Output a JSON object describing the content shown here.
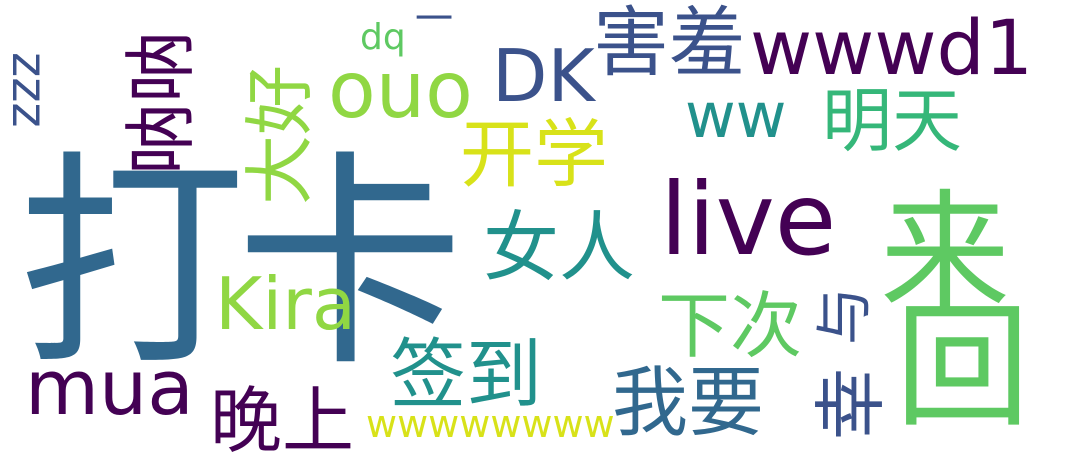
{
  "colors": {
    "dark_purple": "#440154",
    "indigo": "#3b528b",
    "blue": "#31688e",
    "teal": "#21918c",
    "green": "#35b779",
    "light_green": "#5ec962",
    "lime": "#90d743",
    "yellow": "#d8e219"
  },
  "words": {
    "daka": "打卡",
    "live": "live",
    "cai": "来",
    "hui": "回",
    "kai_xue": "开学",
    "nv_ren": "女人",
    "da_hao": "大好",
    "ouo": "ouo",
    "dk": "DK",
    "hai_xiu": "害羞",
    "wwwd1": "wwwd1",
    "ww": "ww",
    "ming_tian": "明天",
    "dq": "dq",
    "dash": "一",
    "zzz": "zzz",
    "lou_lou": "呐呐",
    "kira": "Kira",
    "xia_ci": "下次",
    "yu": "与",
    "qian_dao": "签到",
    "mua": "mua",
    "wan_shang": "晚上",
    "wo_yao": "我要",
    "xing": "幸",
    "wwwwwwww": "wwwwwwww"
  }
}
